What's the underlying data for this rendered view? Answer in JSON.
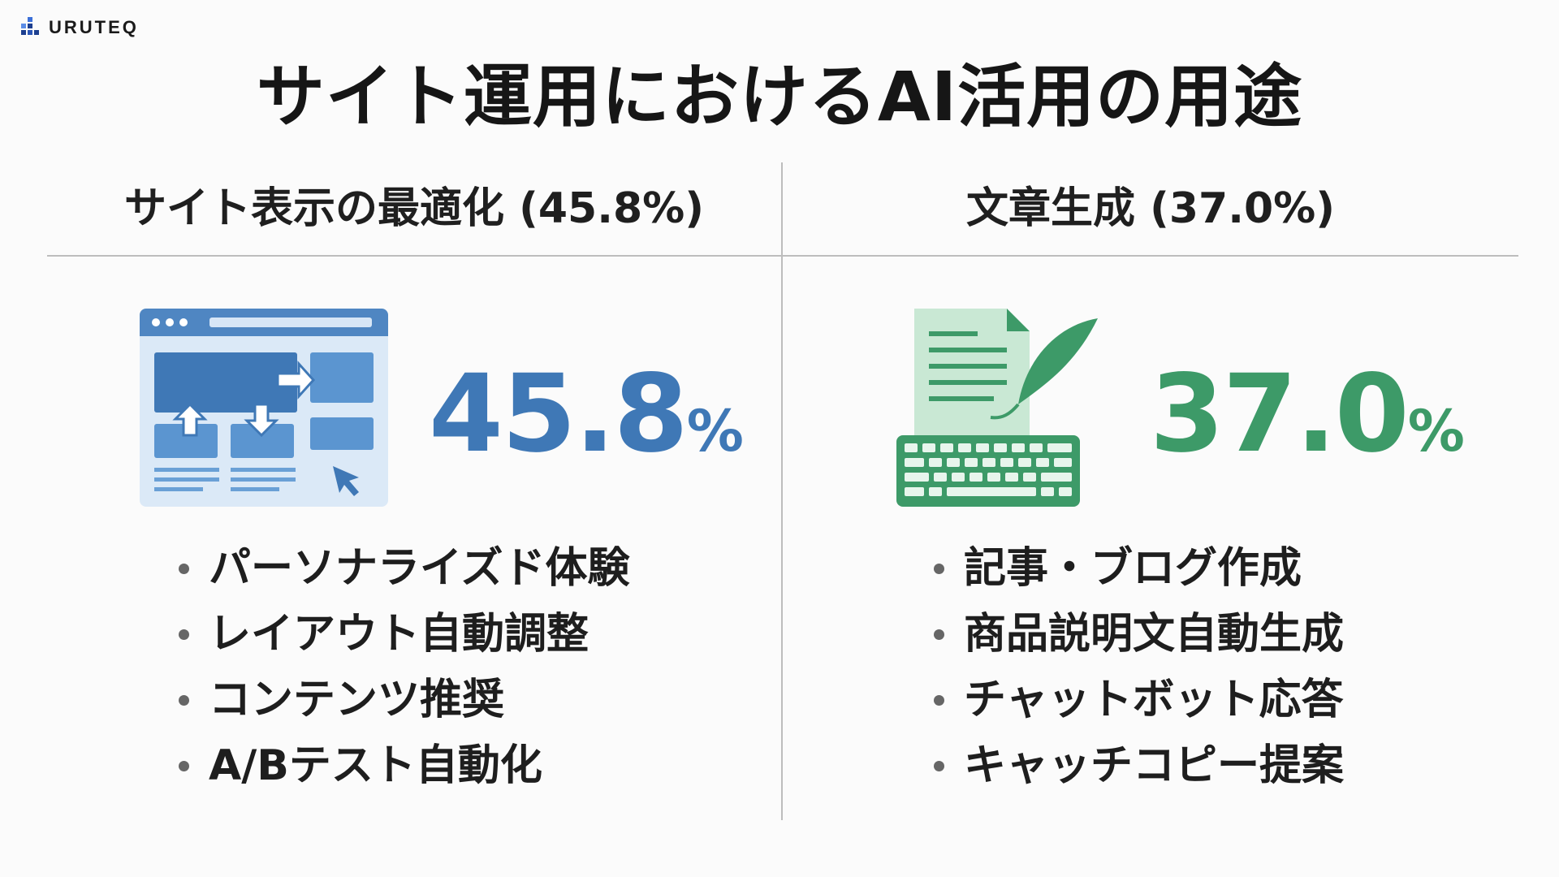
{
  "brand": {
    "name": "URUTEQ",
    "logo_icon": "bar-blocks-logo"
  },
  "title": "サイト運用におけるAI活用の用途",
  "colors": {
    "blue": "#3f78b6",
    "green": "#3d9a68"
  },
  "columns": [
    {
      "heading": "サイト表示の最適化 (45.8%)",
      "icon": "web-layout-optimization-icon",
      "value_number": "45.8",
      "value_unit": "%",
      "items": [
        "パーソナライズド体験",
        "レイアウト自動調整",
        "コンテンツ推奨",
        "A/Bテスト自動化"
      ]
    },
    {
      "heading": "文章生成 (37.0%)",
      "icon": "document-quill-keyboard-icon",
      "value_number": "37.0",
      "value_unit": "%",
      "items": [
        "記事・ブログ作成",
        "商品説明文自動生成",
        "チャットボット応答",
        "キャッチコピー提案"
      ]
    }
  ]
}
